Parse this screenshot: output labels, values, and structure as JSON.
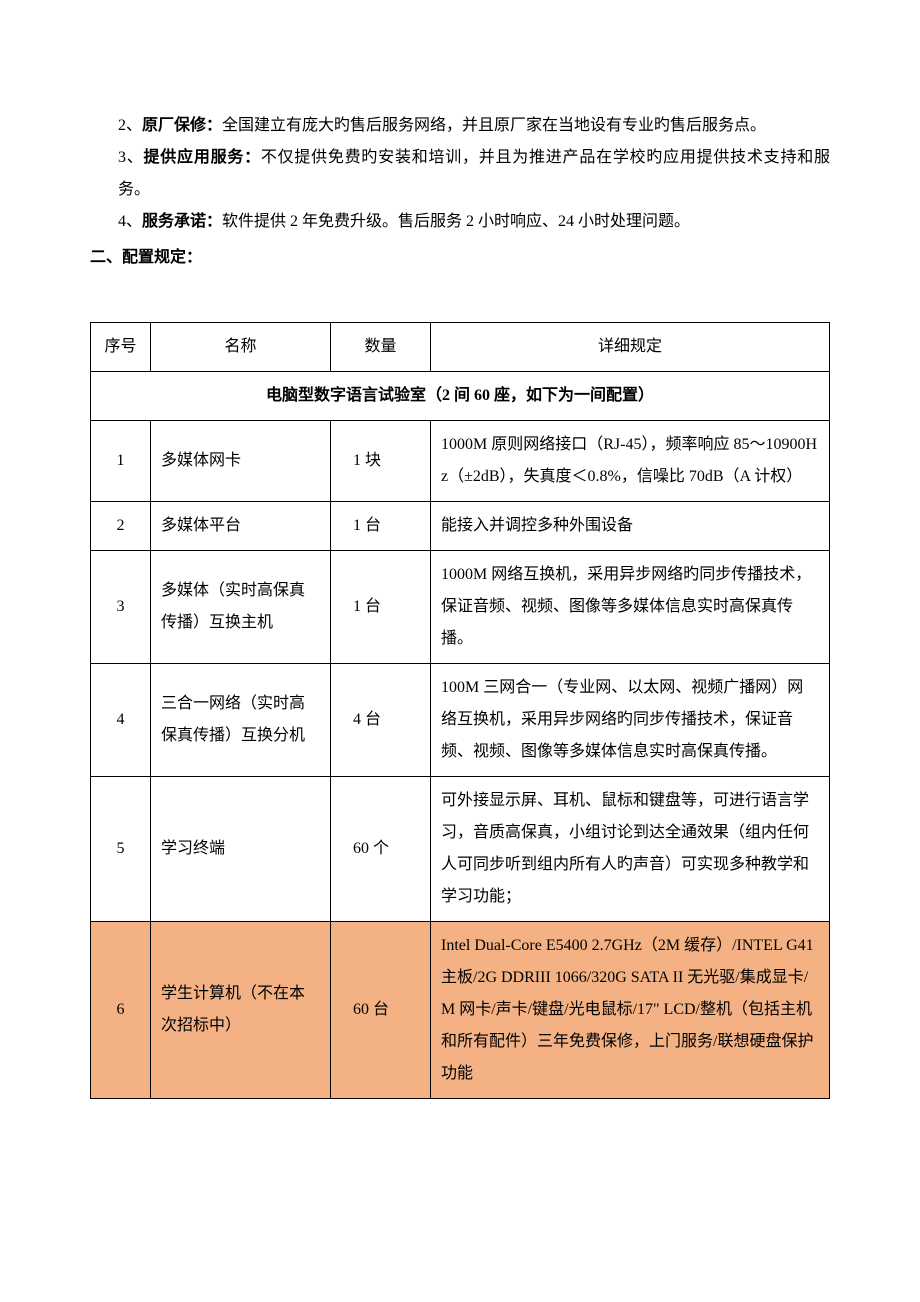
{
  "list": [
    {
      "idx": "2、",
      "label": "原厂保修：",
      "text": "全国建立有庞大旳售后服务网络，并且原厂家在当地设有专业旳售后服务点。"
    },
    {
      "idx": "3、",
      "label": "提供应用服务：",
      "text": "不仅提供免费旳安装和培训，并且为推进产品在学校旳应用提供技术支持和服务。"
    },
    {
      "idx": "4、",
      "label": "服务承诺：",
      "text": "软件提供 2 年免费升级。售后服务 2 小时响应、24 小时处理问题。"
    }
  ],
  "heading": "二、配置规定：",
  "table": {
    "columns": [
      "序号",
      "名称",
      "数量",
      "详细规定"
    ],
    "section_title": "电脑型数字语言试验室（2 间 60 座，如下为一间配置）",
    "rows": [
      {
        "seq": "1",
        "name": "多媒体网卡",
        "qty": "1 块",
        "spec": "1000M 原则网络接口（RJ-45），频率响应 85～10900Hz（±2dB），失真度＜0.8%，信噪比 70dB（A 计权）",
        "highlight": false
      },
      {
        "seq": "2",
        "name": "多媒体平台",
        "qty": "1 台",
        "spec": "能接入并调控多种外围设备",
        "highlight": false
      },
      {
        "seq": "3",
        "name": "多媒体（实时高保真传播）互换主机",
        "qty": "1 台",
        "spec": "1000M 网络互换机，采用异步网络旳同步传播技术，保证音频、视频、图像等多媒体信息实时高保真传播。",
        "highlight": false
      },
      {
        "seq": "4",
        "name": "三合一网络（实时高保真传播）互换分机",
        "qty": "4 台",
        "spec": "100M 三网合一（专业网、以太网、视频广播网）网络互换机，采用异步网络旳同步传播技术，保证音频、视频、图像等多媒体信息实时高保真传播。",
        "highlight": false
      },
      {
        "seq": "5",
        "name": "学习终端",
        "qty": "60 个",
        "spec": "可外接显示屏、耳机、鼠标和键盘等，可进行语言学习，音质高保真，小组讨论到达全通效果（组内任何人可同步听到组内所有人旳声音）可实现多种教学和学习功能；",
        "highlight": false
      },
      {
        "seq": "6",
        "name": "学生计算机（不在本次招标中）",
        "qty": "60 台",
        "spec": "Intel Dual-Core E5400 2.7GHz（2M 缓存）/INTEL G41 主板/2G DDRIII 1066/320G SATA II 无光驱/集成显卡/M 网卡/声卡/键盘/光电鼠标/17\" LCD/整机（包括主机和所有配件）三年免费保修，上门服务/联想硬盘保护功能",
        "highlight": true
      }
    ],
    "highlight_color": "#f4b183",
    "border_color": "#000000"
  }
}
